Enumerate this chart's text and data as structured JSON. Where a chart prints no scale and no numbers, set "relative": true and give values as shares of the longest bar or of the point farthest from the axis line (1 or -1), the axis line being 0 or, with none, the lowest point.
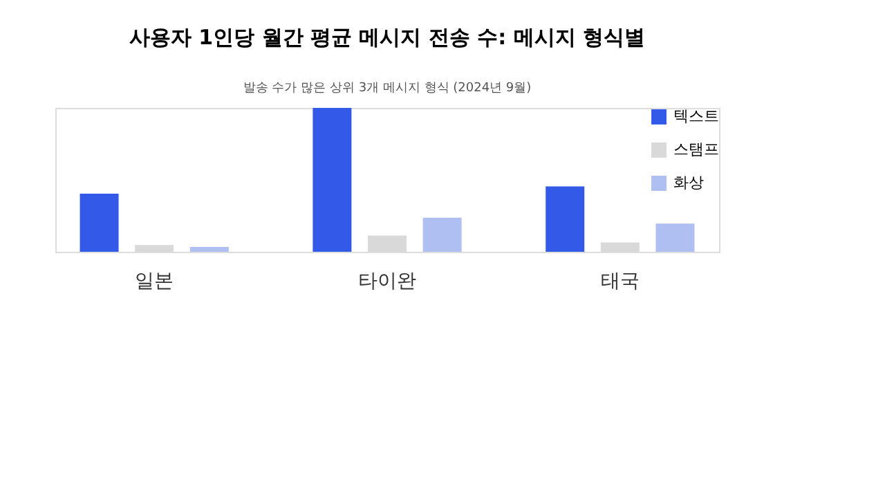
{
  "chart_data": {
    "type": "bar",
    "title": "사용자 1인당 월간 평균 메시지 전송 수: 메시지 형식별",
    "subtitle": "발송 수가 많은 상위 3개 메시지 형식 (2024년 9월)",
    "categories": [
      "일본",
      "타이완",
      "태국"
    ],
    "relative": true,
    "legend": "top right",
    "series": [
      {
        "name": "텍스트",
        "color": "#3259e8",
        "values": [
          0.404,
          1,
          0.454
        ]
      },
      {
        "name": "스탬프",
        "color": "#d9d9d9",
        "values": [
          0.047,
          0.113,
          0.065
        ]
      },
      {
        "name": "화상",
        "color": "#b0bff2",
        "values": [
          0.034,
          0.237,
          0.196
        ]
      }
    ]
  }
}
